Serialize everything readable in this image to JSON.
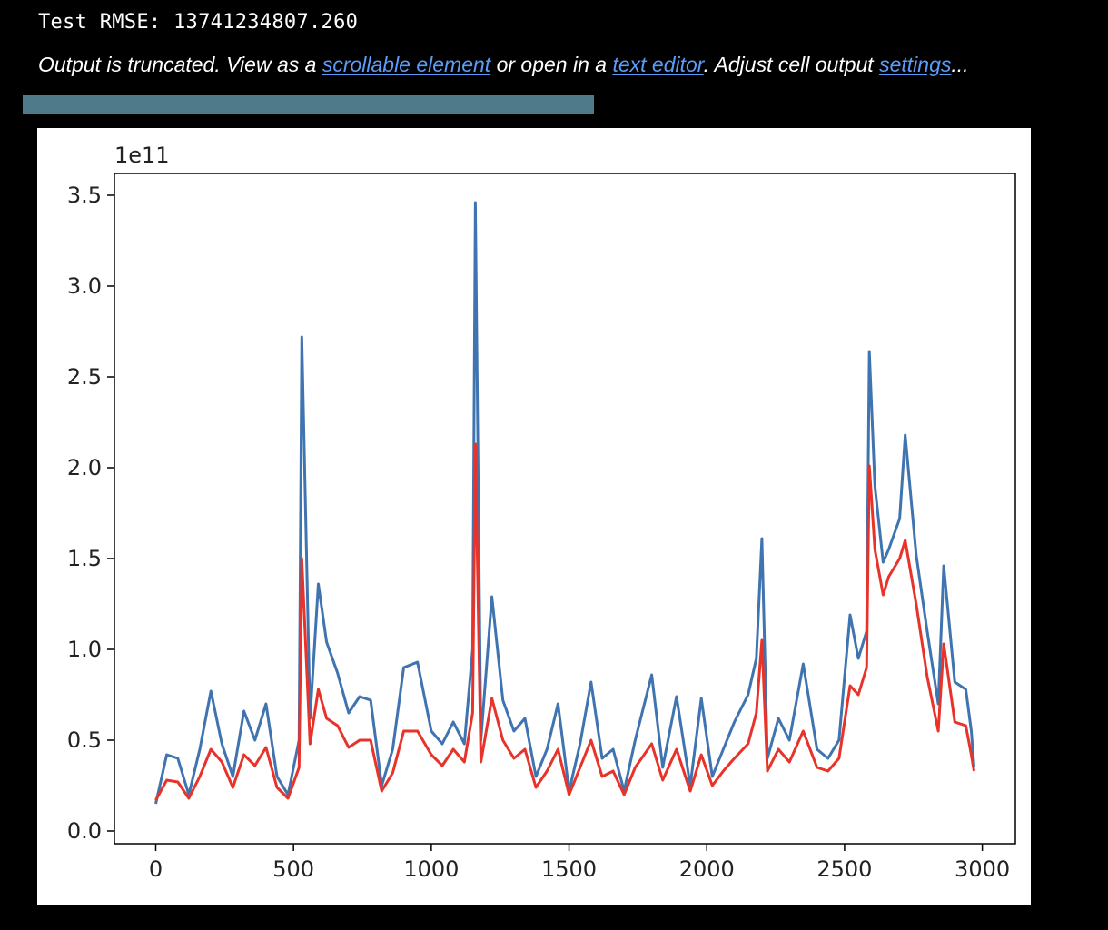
{
  "output": {
    "rmse_text": "Test RMSE: 13741234807.260",
    "truncation": {
      "prefix": "Output is truncated. View as a ",
      "link_scrollable": "scrollable element",
      "mid1": " or open in a ",
      "link_editor": "text editor",
      "mid2": ". Adjust cell output ",
      "link_settings": "settings",
      "suffix": "..."
    },
    "link_color": "#5a9df8",
    "scrollbar_color": "#4f7a8a"
  },
  "chart_data": {
    "type": "line",
    "title": "",
    "xlabel": "",
    "ylabel": "",
    "offset_text": "1e11",
    "xlim": [
      -150,
      3120
    ],
    "ylim": [
      -0.07,
      3.62
    ],
    "xticks": [
      0,
      500,
      1000,
      1500,
      2000,
      2500,
      3000
    ],
    "xtick_labels": [
      "0",
      "500",
      "1000",
      "1500",
      "2000",
      "2500",
      "3000"
    ],
    "yticks": [
      0.0,
      0.5,
      1.0,
      1.5,
      2.0,
      2.5,
      3.0,
      3.5
    ],
    "ytick_labels": [
      "0.0",
      "0.5",
      "1.0",
      "1.5",
      "2.0",
      "2.5",
      "3.0",
      "3.5"
    ],
    "grid": false,
    "series": [
      {
        "color": "#3f74b0",
        "x": [
          0,
          40,
          80,
          120,
          160,
          200,
          240,
          280,
          320,
          360,
          400,
          440,
          480,
          520,
          530,
          560,
          590,
          620,
          660,
          700,
          740,
          780,
          820,
          860,
          900,
          950,
          1000,
          1040,
          1080,
          1120,
          1150,
          1160,
          1180,
          1220,
          1260,
          1300,
          1340,
          1380,
          1420,
          1460,
          1500,
          1540,
          1580,
          1620,
          1660,
          1700,
          1740,
          1800,
          1840,
          1890,
          1940,
          1980,
          2020,
          2060,
          2100,
          2150,
          2180,
          2200,
          2220,
          2260,
          2300,
          2350,
          2400,
          2440,
          2480,
          2520,
          2550,
          2580,
          2590,
          2610,
          2640,
          2660,
          2700,
          2720,
          2760,
          2800,
          2840,
          2860,
          2900,
          2940,
          2960,
          2970
        ],
        "y": [
          0.15,
          0.42,
          0.4,
          0.2,
          0.45,
          0.77,
          0.48,
          0.3,
          0.66,
          0.5,
          0.7,
          0.3,
          0.2,
          0.5,
          2.72,
          0.62,
          1.36,
          1.04,
          0.87,
          0.65,
          0.74,
          0.72,
          0.25,
          0.45,
          0.9,
          0.93,
          0.55,
          0.48,
          0.6,
          0.48,
          1.0,
          3.46,
          0.5,
          1.29,
          0.72,
          0.55,
          0.62,
          0.3,
          0.45,
          0.7,
          0.22,
          0.48,
          0.82,
          0.4,
          0.45,
          0.22,
          0.5,
          0.86,
          0.35,
          0.74,
          0.25,
          0.73,
          0.3,
          0.45,
          0.6,
          0.75,
          0.95,
          1.61,
          0.4,
          0.62,
          0.5,
          0.92,
          0.45,
          0.4,
          0.5,
          1.19,
          0.95,
          1.1,
          2.64,
          1.9,
          1.48,
          1.55,
          1.72,
          2.18,
          1.52,
          1.1,
          0.7,
          1.46,
          0.82,
          0.78,
          0.55,
          0.35
        ]
      },
      {
        "color": "#e8332a",
        "x": [
          0,
          40,
          80,
          120,
          160,
          200,
          240,
          280,
          320,
          360,
          400,
          440,
          480,
          520,
          530,
          560,
          590,
          620,
          660,
          700,
          740,
          780,
          820,
          860,
          900,
          950,
          1000,
          1040,
          1080,
          1120,
          1150,
          1160,
          1180,
          1220,
          1260,
          1300,
          1340,
          1380,
          1420,
          1460,
          1500,
          1540,
          1580,
          1620,
          1660,
          1700,
          1740,
          1800,
          1840,
          1890,
          1940,
          1980,
          2020,
          2060,
          2100,
          2150,
          2180,
          2200,
          2220,
          2260,
          2300,
          2350,
          2400,
          2440,
          2480,
          2520,
          2550,
          2580,
          2590,
          2610,
          2640,
          2660,
          2700,
          2720,
          2760,
          2800,
          2840,
          2860,
          2900,
          2940,
          2960,
          2970
        ],
        "y": [
          0.17,
          0.28,
          0.27,
          0.18,
          0.3,
          0.45,
          0.38,
          0.24,
          0.42,
          0.36,
          0.46,
          0.24,
          0.18,
          0.35,
          1.5,
          0.48,
          0.78,
          0.62,
          0.58,
          0.46,
          0.5,
          0.5,
          0.22,
          0.32,
          0.55,
          0.55,
          0.42,
          0.36,
          0.45,
          0.38,
          0.65,
          2.13,
          0.38,
          0.73,
          0.5,
          0.4,
          0.45,
          0.24,
          0.33,
          0.45,
          0.2,
          0.35,
          0.5,
          0.3,
          0.33,
          0.2,
          0.35,
          0.48,
          0.28,
          0.45,
          0.22,
          0.42,
          0.25,
          0.33,
          0.4,
          0.48,
          0.65,
          1.05,
          0.33,
          0.45,
          0.38,
          0.55,
          0.35,
          0.33,
          0.4,
          0.8,
          0.75,
          0.9,
          2.01,
          1.55,
          1.3,
          1.4,
          1.5,
          1.6,
          1.25,
          0.85,
          0.55,
          1.03,
          0.6,
          0.58,
          0.42,
          0.33
        ]
      }
    ]
  }
}
